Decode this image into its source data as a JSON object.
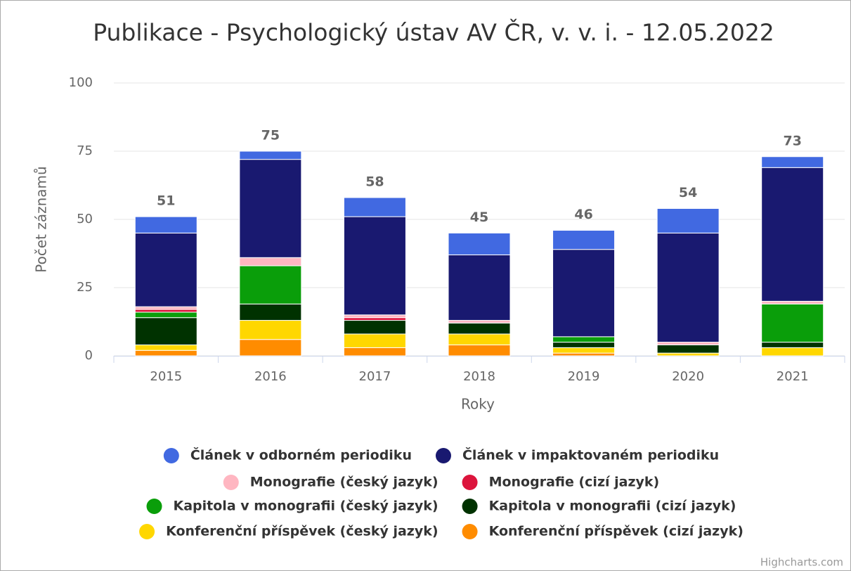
{
  "chart_data": {
    "type": "stacked_bar",
    "title": "Publikace - Psychologický ústav AV ČR, v. v. i. - 12.05.2022",
    "x_label": "Roky",
    "y_label": "Počet záznamů",
    "categories": [
      "2015",
      "2016",
      "2017",
      "2018",
      "2019",
      "2020",
      "2021"
    ],
    "ylim": [
      0,
      100
    ],
    "yticks": [
      0,
      25,
      50,
      75,
      100
    ],
    "grid": true,
    "series": [
      {
        "name": "Článek v odborném periodiku",
        "color": "#4169e1",
        "values": [
          6,
          3,
          7,
          8,
          7,
          9,
          4
        ]
      },
      {
        "name": "Článek v impaktovaném periodiku",
        "color": "#191970",
        "values": [
          27,
          36,
          36,
          24,
          32,
          40,
          49
        ]
      },
      {
        "name": "Monografie (český jazyk)",
        "color": "#ffb6c1",
        "values": [
          1,
          3,
          1,
          1,
          0,
          1,
          1
        ]
      },
      {
        "name": "Monografie (cizí jazyk)",
        "color": "#dc143c",
        "values": [
          1,
          0,
          1,
          0,
          0,
          0,
          0
        ]
      },
      {
        "name": "Kapitola v monografii (český jazyk)",
        "color": "#0a9e0a",
        "values": [
          2,
          14,
          0,
          0,
          2,
          0,
          14
        ]
      },
      {
        "name": "Kapitola v monografii (cizí jazyk)",
        "color": "#003200",
        "values": [
          10,
          6,
          5,
          4,
          2,
          3,
          2
        ]
      },
      {
        "name": "Konferenční příspěvek (český jazyk)",
        "color": "#ffd700",
        "values": [
          2,
          7,
          5,
          4,
          2,
          1,
          3
        ]
      },
      {
        "name": "Konferenční příspěvek (cizí jazyk)",
        "color": "#ff8c00",
        "values": [
          2,
          6,
          3,
          4,
          1,
          0,
          0
        ]
      }
    ],
    "totals": [
      51,
      75,
      58,
      45,
      46,
      54,
      73
    ],
    "credits": "Highcharts.com"
  }
}
